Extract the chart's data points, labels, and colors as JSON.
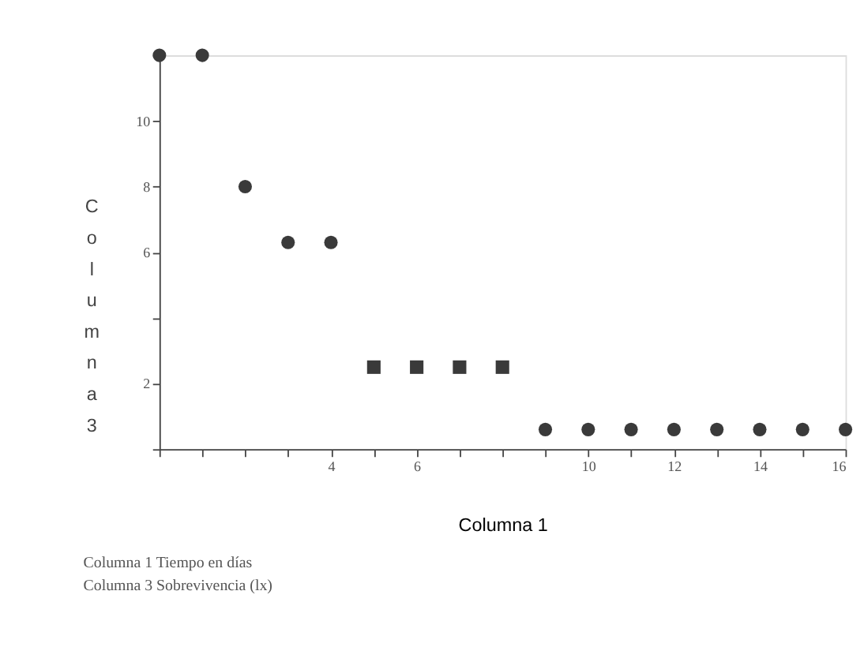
{
  "chart_data": {
    "type": "scatter",
    "xlabel": "Columna 1",
    "ylabel": "Columna 3",
    "annotations": [
      "Columna 1  Tiempo en días",
      "Columna 3  Sobrevivencia (lx)"
    ],
    "series": [
      {
        "color": "#3a3a3a",
        "marker": "circle",
        "x": [
          0,
          1,
          2,
          3,
          4,
          9,
          10,
          11,
          12,
          13,
          14,
          15,
          16
        ],
        "values": [
          12,
          12,
          8,
          6.3,
          6.3,
          0.6,
          0.6,
          0.6,
          0.6,
          0.6,
          0.6,
          0.6,
          0.6
        ]
      },
      {
        "color": "#3a3a3a",
        "marker": "square",
        "x": [
          5,
          6,
          7,
          8
        ],
        "values": [
          2.5,
          2.5,
          2.5,
          2.5
        ]
      }
    ],
    "xlim": [
      0,
      16
    ],
    "xticks": [
      {
        "value": 0,
        "label": null
      },
      {
        "value": 1,
        "label": null
      },
      {
        "value": 2,
        "label": null
      },
      {
        "value": 3,
        "label": null
      },
      4,
      {
        "value": 5,
        "label": null
      },
      6,
      {
        "value": 7,
        "label": null
      },
      {
        "value": 8,
        "label": null
      },
      {
        "value": 9,
        "label": null
      },
      10,
      {
        "value": 11,
        "label": null
      },
      12,
      {
        "value": 13,
        "label": null
      },
      14,
      {
        "value": 15,
        "label": null
      },
      16
    ],
    "ylim": [
      0,
      12
    ],
    "yticks": [
      {
        "value": 0,
        "label": null
      },
      2,
      {
        "value": 4,
        "label": null
      },
      6,
      8,
      10,
      {
        "value": 12,
        "label": null
      }
    ],
    "grid": false,
    "legend": false
  }
}
